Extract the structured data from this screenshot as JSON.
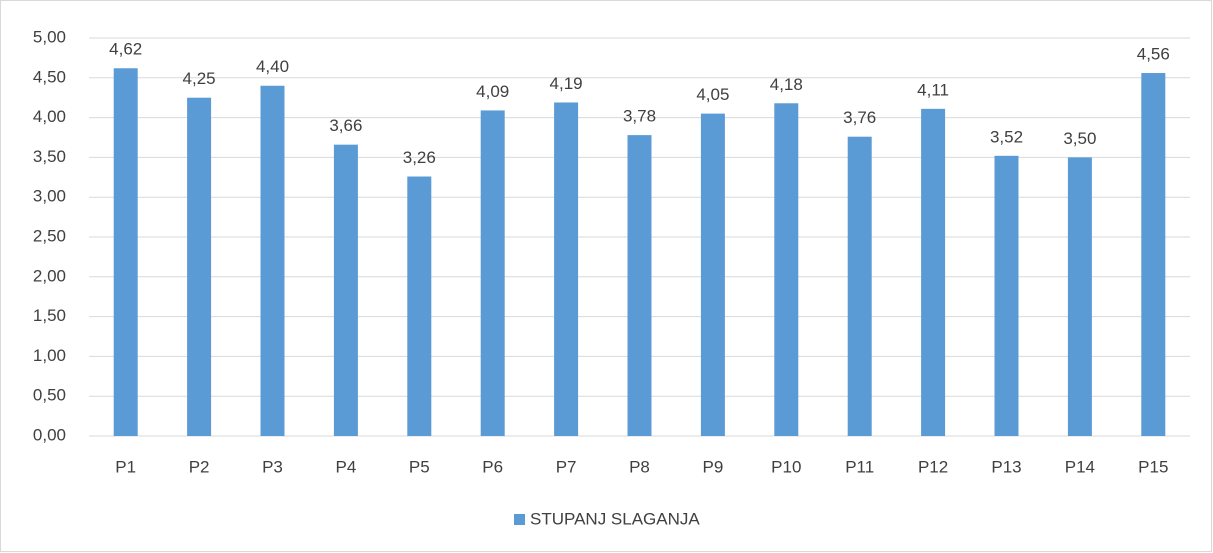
{
  "chart_data": {
    "type": "bar",
    "categories": [
      "P1",
      "P2",
      "P3",
      "P4",
      "P5",
      "P6",
      "P7",
      "P8",
      "P9",
      "P10",
      "P11",
      "P12",
      "P13",
      "P14",
      "P15"
    ],
    "series": [
      {
        "name": "STUPANJ SLAGANJA",
        "color": "#5b9bd5",
        "values": [
          4.62,
          4.25,
          4.4,
          3.66,
          3.26,
          4.09,
          4.19,
          3.78,
          4.05,
          4.18,
          3.76,
          4.11,
          3.52,
          3.5,
          4.56
        ],
        "value_labels": [
          "4,62",
          "4,25",
          "4,40",
          "3,66",
          "3,26",
          "4,09",
          "4,19",
          "3,78",
          "4,05",
          "4,18",
          "3,76",
          "4,11",
          "3,52",
          "3,50",
          "4,56"
        ]
      }
    ],
    "ylim": [
      0,
      5
    ],
    "yticks": [
      {
        "value": 0,
        "label": "0,00"
      },
      {
        "value": 0.5,
        "label": "0,50"
      },
      {
        "value": 1,
        "label": "1,00"
      },
      {
        "value": 1.5,
        "label": "1,50"
      },
      {
        "value": 2,
        "label": "2,00"
      },
      {
        "value": 2.5,
        "label": "2,50"
      },
      {
        "value": 3,
        "label": "3,00"
      },
      {
        "value": 3.5,
        "label": "3,50"
      },
      {
        "value": 4,
        "label": "4,00"
      },
      {
        "value": 4.5,
        "label": "4,50"
      },
      {
        "value": 5,
        "label": "5,00"
      }
    ],
    "grid": true,
    "legend": "bottom"
  }
}
